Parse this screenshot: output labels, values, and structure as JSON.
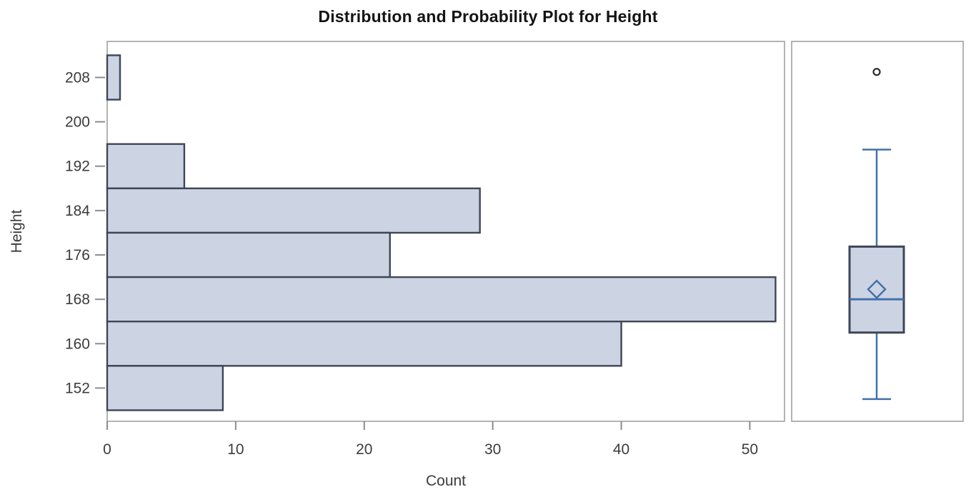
{
  "title": "Distribution and Probability Plot for Height",
  "colors": {
    "background": "#ffffff",
    "bar_fill": "#ccd4e4",
    "bar_stroke": "#3e4656",
    "panel_border": "#9a9a9a",
    "tick_mark": "#8c8c8c",
    "tick_label": "#3c3c3c",
    "axis_title": "#3c3c3c",
    "title_color": "#141414",
    "box_line_blue": "#4570a8",
    "box_stroke": "#3e4656",
    "outlier_stroke": "#2b2b2b"
  },
  "chart_data": [
    {
      "type": "bar",
      "subtype": "horizontal-histogram",
      "title": "Distribution and Probability Plot for Height",
      "xlabel": "Count",
      "ylabel": "Height",
      "categories": [
        208,
        200,
        192,
        184,
        176,
        168,
        160,
        152
      ],
      "values": [
        1,
        0,
        6,
        29,
        22,
        52,
        40,
        9
      ],
      "bin_width": 8,
      "xticks": [
        0,
        10,
        20,
        30,
        40,
        50
      ],
      "yticks": [
        152,
        160,
        168,
        176,
        184,
        192,
        200,
        208
      ],
      "xlim": [
        0,
        52.7
      ],
      "ylim": [
        146,
        214.5
      ],
      "grid": false,
      "legend": "none"
    },
    {
      "type": "boxplot",
      "subtype": "vertical-box-whisker",
      "variable": "Height",
      "stats": {
        "outlier": 209,
        "whisker_high": 195,
        "q3": 177.5,
        "mean": 169.8,
        "median": 168,
        "q1": 162,
        "whisker_low": 150
      },
      "ylim": [
        146,
        214.5
      ]
    }
  ]
}
